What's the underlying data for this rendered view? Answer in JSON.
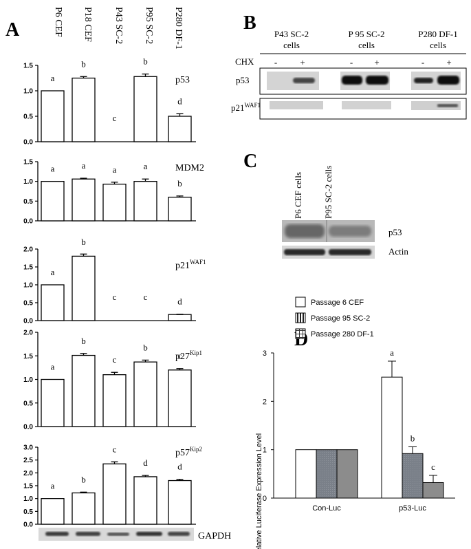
{
  "panel_letters": {
    "a": "A",
    "b": "B",
    "c": "C",
    "d": "D"
  },
  "panel_a": {
    "lanes": [
      "P6 CEF",
      "P18 CEF",
      "P43 SC-2",
      "P95 SC-2",
      "P280 DF-1"
    ],
    "loading_control": "GAPDH"
  },
  "panel_b": {
    "groups": [
      {
        "line1": "P43 SC-2",
        "line2": "cells"
      },
      {
        "line1": "P 95 SC-2",
        "line2": "cells"
      },
      {
        "line1": "P280 DF-1",
        "line2": "cells"
      }
    ],
    "treatment_label": "CHX",
    "lane_marks": [
      "-",
      "+",
      "-",
      "+",
      "-",
      "+"
    ],
    "rows": [
      "p53",
      "p21",
      "WAF1"
    ]
  },
  "panel_c": {
    "lanes": [
      "P6 CEF cells",
      "P95 SC-2 cells"
    ],
    "rows": [
      "p53",
      "Actin"
    ]
  },
  "chart_data": [
    {
      "type": "bar",
      "panel": "A",
      "protein": "p53",
      "superscript": "",
      "categories": [
        "P6 CEF",
        "P18 CEF",
        "P43 SC-2",
        "P95 SC-2",
        "P280 DF-1"
      ],
      "values": [
        1.0,
        1.25,
        0,
        1.28,
        0.5
      ],
      "errors": [
        0,
        0.03,
        0,
        0.05,
        0.05
      ],
      "letters": [
        "a",
        "b",
        "c",
        "b",
        "d"
      ],
      "ylim": [
        0,
        1.5
      ],
      "yticks": [
        "0.0",
        "0.5",
        "1.0",
        "1.5"
      ]
    },
    {
      "type": "bar",
      "panel": "A",
      "protein": "MDM2",
      "superscript": "",
      "categories": [
        "P6 CEF",
        "P18 CEF",
        "P43 SC-2",
        "P95 SC-2",
        "P280 DF-1"
      ],
      "values": [
        1.0,
        1.06,
        0.93,
        1.0,
        0.6
      ],
      "errors": [
        0,
        0.02,
        0.05,
        0.06,
        0.03
      ],
      "letters": [
        "a",
        "a",
        "a",
        "a",
        "b"
      ],
      "ylim": [
        0,
        1.5
      ],
      "yticks": [
        "0.0",
        "0.5",
        "1.0",
        "1.5"
      ]
    },
    {
      "type": "bar",
      "panel": "A",
      "protein": "p21",
      "superscript": "WAF1",
      "categories": [
        "P6 CEF",
        "P18 CEF",
        "P43 SC-2",
        "P95 SC-2",
        "P280 DF-1"
      ],
      "values": [
        1.0,
        1.8,
        0,
        0,
        0.17
      ],
      "errors": [
        0,
        0.06,
        0,
        0,
        0.01
      ],
      "letters": [
        "a",
        "b",
        "c",
        "c",
        "d"
      ],
      "ylim": [
        0,
        2.0
      ],
      "yticks": [
        "0.0",
        "0.5",
        "1.0",
        "1.5",
        "2.0"
      ]
    },
    {
      "type": "bar",
      "panel": "A",
      "protein": "p27",
      "superscript": "Kip1",
      "categories": [
        "P6 CEF",
        "P18 CEF",
        "P43 SC-2",
        "P95 SC-2",
        "P280 DF-1"
      ],
      "values": [
        1.0,
        1.51,
        1.1,
        1.37,
        1.2
      ],
      "errors": [
        0,
        0.04,
        0.05,
        0.04,
        0.03
      ],
      "letters": [
        "a",
        "b",
        "c",
        "b",
        "c"
      ],
      "ylim": [
        0,
        2.0
      ],
      "yticks": [
        "0.0",
        "0.5",
        "1.0",
        "1.5",
        "2.0"
      ]
    },
    {
      "type": "bar",
      "panel": "A",
      "protein": "p57",
      "superscript": "Kip2",
      "categories": [
        "P6 CEF",
        "P18 CEF",
        "P43 SC-2",
        "P95 SC-2",
        "P280 DF-1"
      ],
      "values": [
        1.0,
        1.22,
        2.35,
        1.85,
        1.7
      ],
      "errors": [
        0,
        0.03,
        0.08,
        0.05,
        0.05
      ],
      "letters": [
        "a",
        "b",
        "c",
        "d",
        "d"
      ],
      "ylim": [
        0,
        3.0
      ],
      "yticks": [
        "0.0",
        "0.5",
        "1.0",
        "1.5",
        "2.0",
        "2.5",
        "3.0"
      ]
    },
    {
      "type": "bar",
      "panel": "D",
      "ylabel": "Relative Luciferase Expression Level",
      "categories": [
        "Con-Luc",
        "p53-Luc"
      ],
      "series": [
        {
          "name": "Passage 6 CEF",
          "values": [
            1.0,
            2.5
          ],
          "errors": [
            0,
            0.33
          ]
        },
        {
          "name": "Passage 95 SC-2",
          "values": [
            1.0,
            0.92
          ],
          "errors": [
            0,
            0.14
          ]
        },
        {
          "name": "Passage 280 DF-1",
          "values": [
            1.0,
            0.32
          ],
          "errors": [
            0,
            0.15
          ]
        }
      ],
      "letters": [
        "a",
        "b",
        "c"
      ],
      "ylim": [
        0,
        3
      ],
      "yticks": [
        "0",
        "1",
        "2",
        "3"
      ]
    }
  ]
}
